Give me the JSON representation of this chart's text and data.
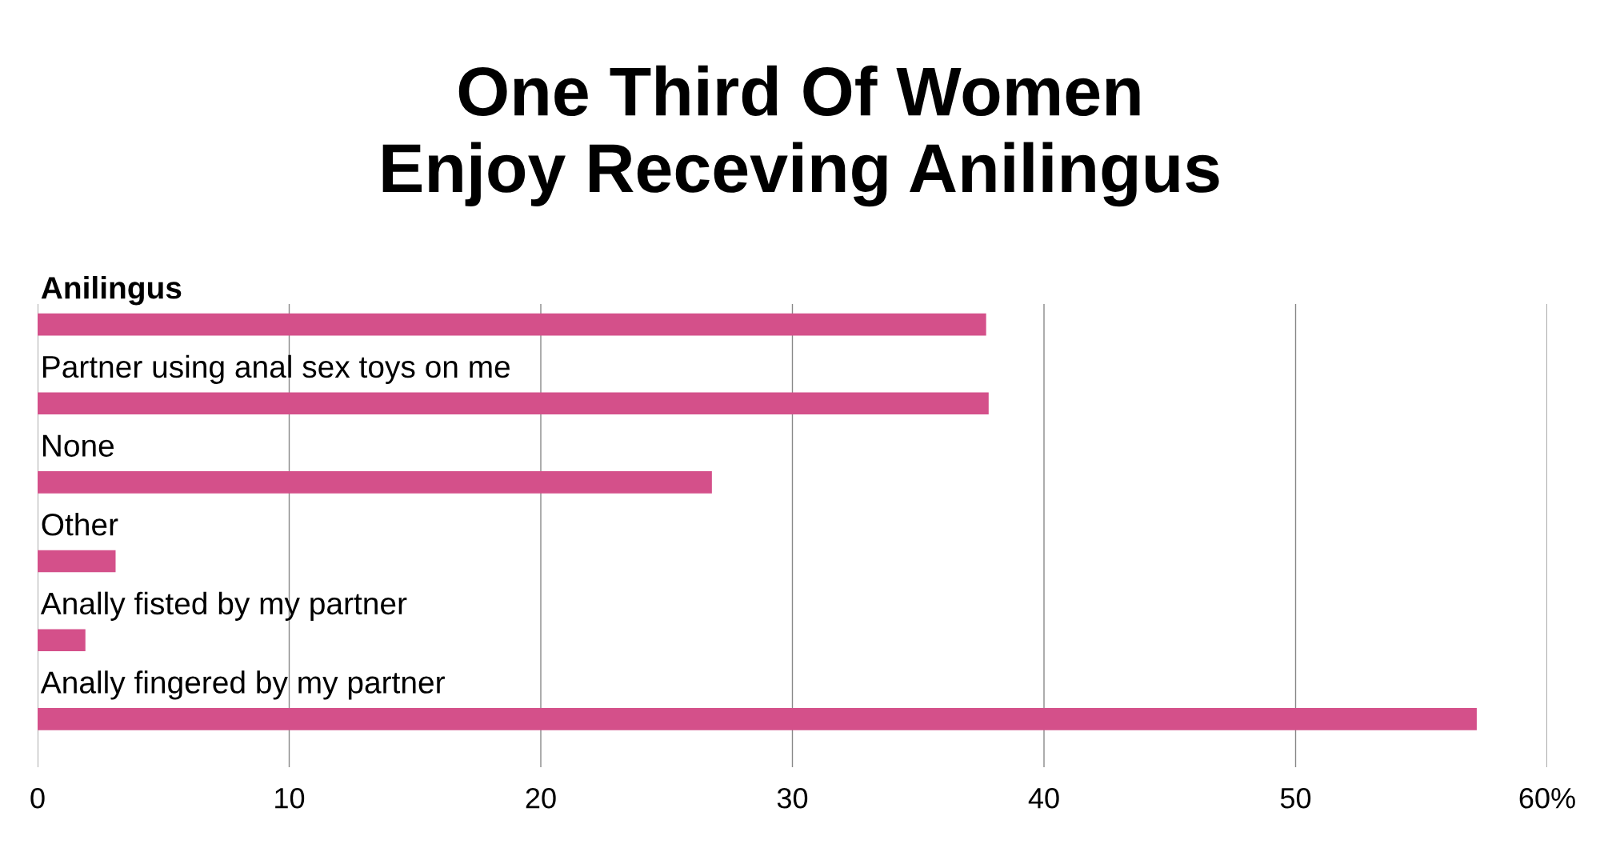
{
  "chart_data": {
    "type": "bar",
    "orientation": "horizontal",
    "title": "One Third Of Women\nEnjoy Receving Anilingus",
    "categories": [
      "Anilingus",
      "Partner using anal sex toys on me",
      "None",
      "Other",
      "Anally fisted by my partner",
      "Anally fingered by my partner"
    ],
    "values": [
      37.7,
      37.8,
      26.8,
      3.1,
      1.9,
      57.2
    ],
    "color": "#d4508a",
    "xlim": [
      0,
      60
    ],
    "xticks": [
      0,
      10,
      20,
      30,
      40,
      50,
      {
        "value": 60,
        "label": "60%"
      }
    ],
    "grid": "x",
    "legend": false
  }
}
